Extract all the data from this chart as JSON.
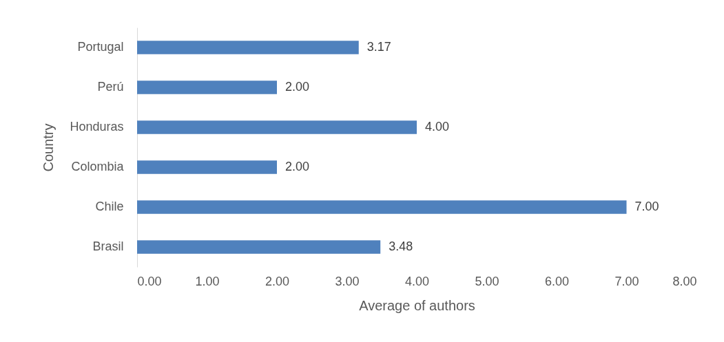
{
  "chart_data": {
    "type": "bar",
    "orientation": "horizontal",
    "xlabel": "Average of authors",
    "ylabel": "Country",
    "categories": [
      "Portugal",
      "Perú",
      "Honduras",
      "Colombia",
      "Chile",
      "Brasil"
    ],
    "values": [
      3.17,
      2.0,
      4.0,
      2.0,
      7.0,
      3.48
    ],
    "value_labels": [
      "3.17",
      "2.00",
      "4.00",
      "2.00",
      "7.00",
      "3.48"
    ],
    "color": "#4f81bd",
    "xlim": [
      0,
      8
    ],
    "xticks": [
      {
        "value": 0,
        "label": "0.00"
      },
      {
        "value": 1,
        "label": "1.00"
      },
      {
        "value": 2,
        "label": "2.00"
      },
      {
        "value": 3,
        "label": "3.00"
      },
      {
        "value": 4,
        "label": "4.00"
      },
      {
        "value": 5,
        "label": "5.00"
      },
      {
        "value": 6,
        "label": "6.00"
      },
      {
        "value": 7,
        "label": "7.00"
      },
      {
        "value": 8,
        "label": "8.00"
      }
    ],
    "grid": false
  }
}
